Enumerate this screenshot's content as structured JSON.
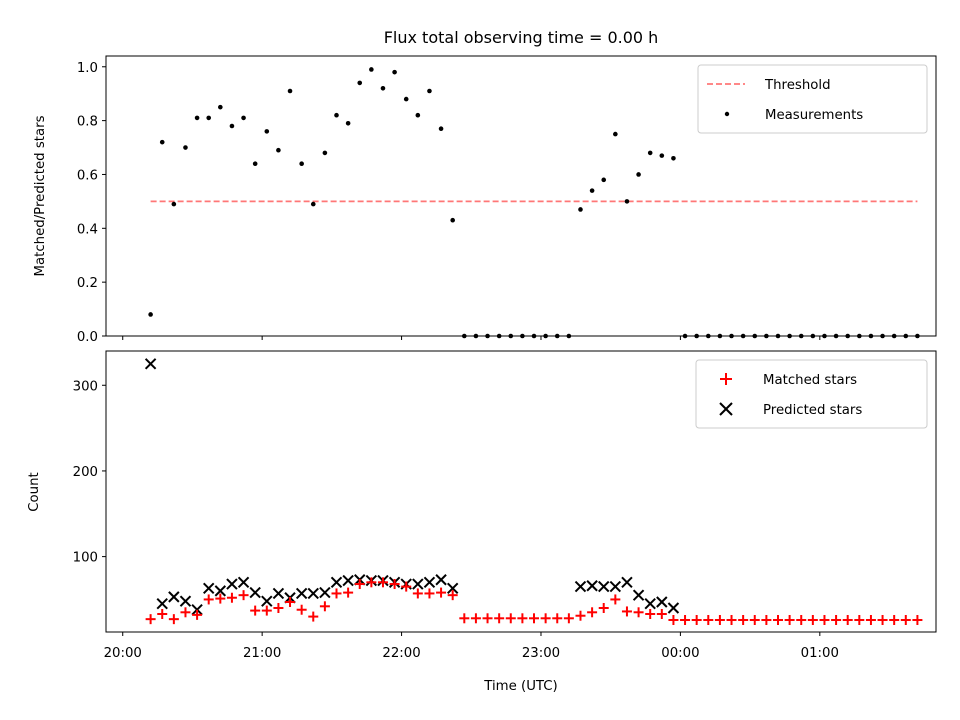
{
  "chart_data": [
    {
      "type": "scatter",
      "title": "Flux total observing time = 0.00 h",
      "xlabel": "",
      "ylabel": "Matched/Predicted stars",
      "ylim": [
        0.0,
        1.04
      ],
      "yticks": [
        "0.0",
        "0.2",
        "0.4",
        "0.6",
        "0.8",
        "1.0"
      ],
      "xlim": [
        "20:00",
        "01:50"
      ],
      "legend_position": "top-right",
      "threshold": {
        "name": "Threshold",
        "value": 0.5,
        "x": [
          "20:12",
          "01:42"
        ],
        "color": "#ff7777",
        "style": "dashed"
      },
      "series": [
        {
          "name": "Measurements",
          "color": "#000000",
          "x": [
            "20:12",
            "20:17",
            "20:22",
            "20:27",
            "20:32",
            "20:37",
            "20:42",
            "20:47",
            "20:52",
            "20:57",
            "21:02",
            "21:07",
            "21:12",
            "21:17",
            "21:22",
            "21:27",
            "21:32",
            "21:37",
            "21:42",
            "21:47",
            "21:52",
            "21:57",
            "22:02",
            "22:07",
            "22:12",
            "22:17",
            "22:22",
            "22:27",
            "22:32",
            "22:37",
            "22:42",
            "22:47",
            "22:52",
            "22:57",
            "23:02",
            "23:07",
            "23:12",
            "23:17",
            "23:22",
            "23:27",
            "23:32",
            "23:37",
            "23:42",
            "23:47",
            "23:52",
            "23:57",
            "00:02",
            "00:07",
            "00:12",
            "00:17",
            "00:22",
            "00:27",
            "00:32",
            "00:37",
            "00:42",
            "00:47",
            "00:52",
            "00:57",
            "01:02",
            "01:07",
            "01:12",
            "01:17",
            "01:22",
            "01:27",
            "01:32",
            "01:37",
            "01:42"
          ],
          "y": [
            0.08,
            0.72,
            0.49,
            0.7,
            0.81,
            0.81,
            0.85,
            0.78,
            0.81,
            0.64,
            0.76,
            0.69,
            0.91,
            0.64,
            0.49,
            0.68,
            0.82,
            0.79,
            0.94,
            0.99,
            0.92,
            0.98,
            0.88,
            0.82,
            0.91,
            0.77,
            0.43,
            0.0,
            0.0,
            0.0,
            0.0,
            0.0,
            0.0,
            0.0,
            0.0,
            0.0,
            0.0,
            0.47,
            0.54,
            0.58,
            0.75,
            0.5,
            0.6,
            0.68,
            0.67,
            0.66,
            0.0,
            0.0,
            0.0,
            0.0,
            0.0,
            0.0,
            0.0,
            0.0,
            0.0,
            0.0,
            0.0,
            0.0,
            0.0,
            0.0,
            0.0,
            0.0,
            0.0,
            0.0,
            0.0,
            0.0,
            0.0
          ]
        }
      ]
    },
    {
      "type": "scatter",
      "title": "",
      "xlabel": "Time (UTC)",
      "ylabel": "Count",
      "ylim": [
        12,
        340
      ],
      "yticks": [
        "100",
        "200",
        "300"
      ],
      "xlim": [
        "20:00",
        "01:50"
      ],
      "xticks": [
        "20:00",
        "21:00",
        "22:00",
        "23:00",
        "00:00",
        "01:00"
      ],
      "legend_position": "top-right",
      "series": [
        {
          "name": "Matched stars",
          "marker": "plus",
          "color": "#ff0000",
          "x": [
            "20:12",
            "20:17",
            "20:22",
            "20:27",
            "20:32",
            "20:37",
            "20:42",
            "20:47",
            "20:52",
            "20:57",
            "21:02",
            "21:07",
            "21:12",
            "21:17",
            "21:22",
            "21:27",
            "21:32",
            "21:37",
            "21:42",
            "21:47",
            "21:52",
            "21:57",
            "22:02",
            "22:07",
            "22:12",
            "22:17",
            "22:22",
            "22:27",
            "22:32",
            "22:37",
            "22:42",
            "22:47",
            "22:52",
            "22:57",
            "23:02",
            "23:07",
            "23:12",
            "23:17",
            "23:22",
            "23:27",
            "23:32",
            "23:37",
            "23:42",
            "23:47",
            "23:52",
            "23:57",
            "00:02",
            "00:07",
            "00:12",
            "00:17",
            "00:22",
            "00:27",
            "00:32",
            "00:37",
            "00:42",
            "00:47",
            "00:52",
            "00:57",
            "01:02",
            "01:07",
            "01:12",
            "01:17",
            "01:22",
            "01:27",
            "01:32",
            "01:37",
            "01:42"
          ],
          "y": [
            27,
            33,
            27,
            35,
            32,
            50,
            51,
            52,
            55,
            37,
            37,
            40,
            47,
            38,
            30,
            42,
            57,
            58,
            68,
            70,
            70,
            68,
            65,
            57,
            57,
            58,
            55,
            28,
            28,
            28,
            28,
            28,
            28,
            28,
            28,
            28,
            28,
            31,
            35,
            40,
            50,
            36,
            35,
            33,
            33,
            26,
            26,
            26,
            26,
            26,
            26,
            26,
            26,
            26,
            26,
            26,
            26,
            26,
            26,
            26,
            26,
            26,
            26,
            26,
            26,
            26,
            26
          ]
        },
        {
          "name": "Predicted stars",
          "marker": "x",
          "color": "#000000",
          "x": [
            "20:12",
            "20:17",
            "20:22",
            "20:27",
            "20:32",
            "20:37",
            "20:42",
            "20:47",
            "20:52",
            "20:57",
            "21:02",
            "21:07",
            "21:12",
            "21:17",
            "21:22",
            "21:27",
            "21:32",
            "21:37",
            "21:42",
            "21:47",
            "21:52",
            "21:57",
            "22:02",
            "22:07",
            "22:12",
            "22:17",
            "22:22",
            "23:17",
            "23:22",
            "23:27",
            "23:32",
            "23:37",
            "23:42",
            "23:47",
            "23:52",
            "23:57"
          ],
          "y": [
            325,
            45,
            53,
            48,
            38,
            63,
            60,
            68,
            70,
            58,
            48,
            57,
            52,
            57,
            57,
            58,
            70,
            72,
            73,
            72,
            72,
            70,
            68,
            68,
            70,
            73,
            63,
            65,
            66,
            65,
            65,
            70,
            55,
            45,
            47,
            40
          ]
        }
      ]
    }
  ]
}
